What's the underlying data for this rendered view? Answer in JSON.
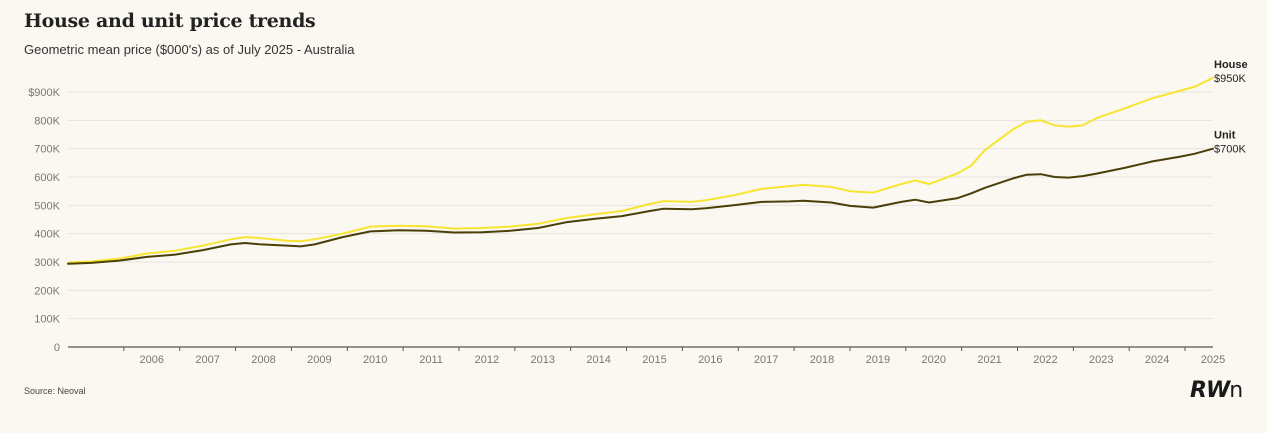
{
  "title": "House and unit price trends",
  "subtitle": "Geometric mean price ($000's) as of July 2025 - Australia",
  "source": "Source: Neoval",
  "logo": "RWn",
  "colors": {
    "house": "#f7e531",
    "unit": "#4a3f08",
    "grid": "#e6e3da",
    "axis": "#555555"
  },
  "chart_data": {
    "type": "line",
    "title": "House and unit price trends",
    "subtitle": "Geometric mean price ($000's) as of July 2025 - Australia",
    "xlabel": "",
    "ylabel": "",
    "ylim": [
      0,
      900
    ],
    "xlim": [
      "2005-01",
      "2025-07"
    ],
    "grid": true,
    "yticks": [
      {
        "value": 0,
        "label": "0"
      },
      {
        "value": 100,
        "label": "100K"
      },
      {
        "value": 200,
        "label": "200K"
      },
      {
        "value": 300,
        "label": "300K"
      },
      {
        "value": 400,
        "label": "400K"
      },
      {
        "value": 500,
        "label": "500K"
      },
      {
        "value": 600,
        "label": "600K"
      },
      {
        "value": 700,
        "label": "700K"
      },
      {
        "value": 800,
        "label": "800K"
      },
      {
        "value": 900,
        "label": "$900K"
      }
    ],
    "xticks": [
      "2006",
      "2007",
      "2008",
      "2009",
      "2010",
      "2011",
      "2012",
      "2013",
      "2014",
      "2015",
      "2016",
      "2017",
      "2018",
      "2019",
      "2020",
      "2021",
      "2022",
      "2023",
      "2024",
      "2025"
    ],
    "series": [
      {
        "name": "House",
        "end_label": "$950K",
        "color": "#f7e531",
        "points": [
          [
            "2005-01",
            298
          ],
          [
            "2005-06",
            302
          ],
          [
            "2005-12",
            312
          ],
          [
            "2006-06",
            330
          ],
          [
            "2006-12",
            340
          ],
          [
            "2007-06",
            358
          ],
          [
            "2007-12",
            380
          ],
          [
            "2008-03",
            388
          ],
          [
            "2008-06",
            385
          ],
          [
            "2008-12",
            375
          ],
          [
            "2009-03",
            373
          ],
          [
            "2009-06",
            380
          ],
          [
            "2009-12",
            400
          ],
          [
            "2010-06",
            425
          ],
          [
            "2010-12",
            428
          ],
          [
            "2011-06",
            426
          ],
          [
            "2011-12",
            418
          ],
          [
            "2012-06",
            420
          ],
          [
            "2012-12",
            425
          ],
          [
            "2013-06",
            435
          ],
          [
            "2013-12",
            455
          ],
          [
            "2014-06",
            468
          ],
          [
            "2014-12",
            480
          ],
          [
            "2015-06",
            505
          ],
          [
            "2015-09",
            515
          ],
          [
            "2016-03",
            512
          ],
          [
            "2016-06",
            518
          ],
          [
            "2016-12",
            535
          ],
          [
            "2017-06",
            558
          ],
          [
            "2017-12",
            568
          ],
          [
            "2018-03",
            572
          ],
          [
            "2018-09",
            565
          ],
          [
            "2019-01",
            550
          ],
          [
            "2019-06",
            545
          ],
          [
            "2019-12",
            575
          ],
          [
            "2020-03",
            588
          ],
          [
            "2020-06",
            575
          ],
          [
            "2020-12",
            612
          ],
          [
            "2021-03",
            640
          ],
          [
            "2021-06",
            695
          ],
          [
            "2021-12",
            768
          ],
          [
            "2022-03",
            795
          ],
          [
            "2022-06",
            800
          ],
          [
            "2022-09",
            782
          ],
          [
            "2022-12",
            778
          ],
          [
            "2023-03",
            782
          ],
          [
            "2023-06",
            808
          ],
          [
            "2023-12",
            842
          ],
          [
            "2024-06",
            878
          ],
          [
            "2024-12",
            905
          ],
          [
            "2025-03",
            918
          ],
          [
            "2025-07",
            950
          ]
        ]
      },
      {
        "name": "Unit",
        "end_label": "$700K",
        "color": "#4a3f08",
        "points": [
          [
            "2005-01",
            294
          ],
          [
            "2005-06",
            297
          ],
          [
            "2005-12",
            305
          ],
          [
            "2006-06",
            318
          ],
          [
            "2006-12",
            326
          ],
          [
            "2007-06",
            342
          ],
          [
            "2007-12",
            362
          ],
          [
            "2008-03",
            367
          ],
          [
            "2008-06",
            363
          ],
          [
            "2008-12",
            358
          ],
          [
            "2009-03",
            355
          ],
          [
            "2009-06",
            362
          ],
          [
            "2009-12",
            388
          ],
          [
            "2010-06",
            408
          ],
          [
            "2010-12",
            412
          ],
          [
            "2011-06",
            410
          ],
          [
            "2011-12",
            404
          ],
          [
            "2012-06",
            405
          ],
          [
            "2012-12",
            410
          ],
          [
            "2013-06",
            420
          ],
          [
            "2013-12",
            440
          ],
          [
            "2014-06",
            452
          ],
          [
            "2014-12",
            462
          ],
          [
            "2015-06",
            480
          ],
          [
            "2015-09",
            488
          ],
          [
            "2016-03",
            486
          ],
          [
            "2016-06",
            490
          ],
          [
            "2016-12",
            500
          ],
          [
            "2017-06",
            512
          ],
          [
            "2017-12",
            514
          ],
          [
            "2018-03",
            516
          ],
          [
            "2018-09",
            510
          ],
          [
            "2019-01",
            498
          ],
          [
            "2019-06",
            492
          ],
          [
            "2019-12",
            512
          ],
          [
            "2020-03",
            520
          ],
          [
            "2020-06",
            510
          ],
          [
            "2020-12",
            525
          ],
          [
            "2021-03",
            542
          ],
          [
            "2021-06",
            562
          ],
          [
            "2021-12",
            595
          ],
          [
            "2022-03",
            608
          ],
          [
            "2022-06",
            610
          ],
          [
            "2022-09",
            600
          ],
          [
            "2022-12",
            598
          ],
          [
            "2023-03",
            603
          ],
          [
            "2023-06",
            612
          ],
          [
            "2023-12",
            632
          ],
          [
            "2024-06",
            655
          ],
          [
            "2024-12",
            672
          ],
          [
            "2025-03",
            682
          ],
          [
            "2025-07",
            700
          ]
        ]
      }
    ]
  }
}
